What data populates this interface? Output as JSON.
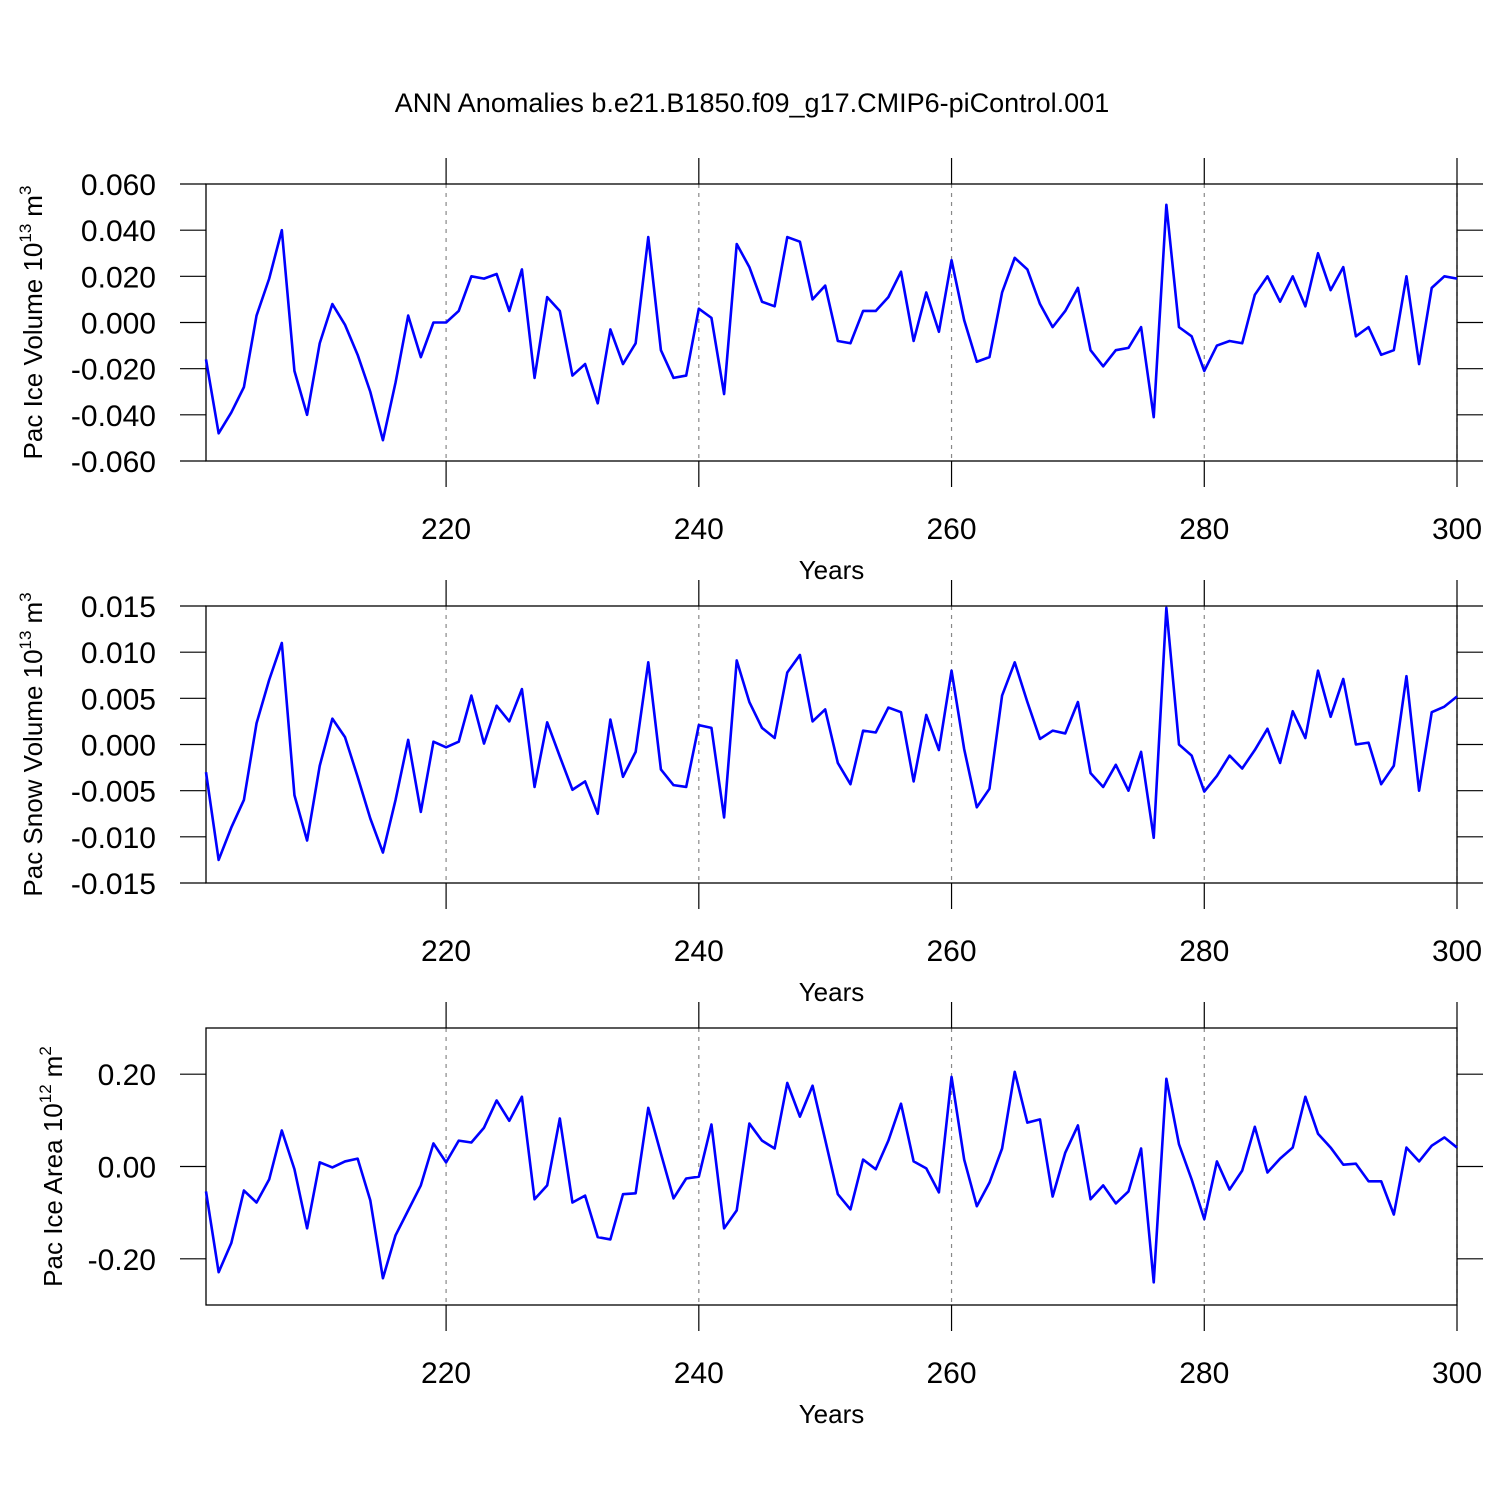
{
  "title": "ANN Anomalies b.e21.B1850.f09_g17.CMIP6-piControl.001",
  "chart_data": [
    {
      "type": "line",
      "ylabel": [
        "Pac Ice Volume 10",
        "13",
        "m",
        "3"
      ],
      "xlabel": "Years",
      "grid": true,
      "grid_axis": "x",
      "xlim": [
        201,
        300
      ],
      "xticks": [
        220,
        240,
        260,
        280,
        300
      ],
      "ylim": [
        -0.06,
        0.06
      ],
      "yticks": [
        {
          "value": -0.06,
          "label": "-0.060"
        },
        {
          "value": -0.04,
          "label": "-0.040"
        },
        {
          "value": -0.02,
          "label": "-0.020"
        },
        {
          "value": 0,
          "label": "0.000"
        },
        {
          "value": 0.02,
          "label": "0.020"
        },
        {
          "value": 0.04,
          "label": "0.040"
        },
        {
          "value": 0.06,
          "label": "0.060"
        }
      ],
      "x": [
        201,
        202,
        203,
        204,
        205,
        206,
        207,
        208,
        209,
        210,
        211,
        212,
        213,
        214,
        215,
        216,
        217,
        218,
        219,
        220,
        221,
        222,
        223,
        224,
        225,
        226,
        227,
        228,
        229,
        230,
        231,
        232,
        233,
        234,
        235,
        236,
        237,
        238,
        239,
        240,
        241,
        242,
        243,
        244,
        245,
        246,
        247,
        248,
        249,
        250,
        251,
        252,
        253,
        254,
        255,
        256,
        257,
        258,
        259,
        260,
        261,
        262,
        263,
        264,
        265,
        266,
        267,
        268,
        269,
        270,
        271,
        272,
        273,
        274,
        275,
        276,
        277,
        278,
        279,
        280,
        281,
        282,
        283,
        284,
        285,
        286,
        287,
        288,
        289,
        290,
        291,
        292,
        293,
        294,
        295,
        296,
        297,
        298,
        299,
        300
      ],
      "series": [
        {
          "color": "#0000ff",
          "values": [
            -0.016,
            -0.048,
            -0.039,
            -0.028,
            0.003,
            0.019,
            0.04,
            -0.021,
            -0.04,
            -0.009,
            0.008,
            -0.001,
            -0.014,
            -0.03,
            -0.051,
            -0.026,
            0.003,
            -0.015,
            0.0,
            0.0,
            0.005,
            0.02,
            0.019,
            0.021,
            0.005,
            0.023,
            -0.024,
            0.011,
            0.005,
            -0.023,
            -0.018,
            -0.035,
            -0.003,
            -0.018,
            -0.009,
            0.037,
            -0.012,
            -0.024,
            -0.023,
            0.006,
            0.002,
            -0.031,
            0.034,
            0.024,
            0.009,
            0.007,
            0.037,
            0.035,
            0.01,
            0.016,
            -0.008,
            -0.009,
            0.005,
            0.005,
            0.011,
            0.022,
            -0.008,
            0.013,
            -0.004,
            0.027,
            0.001,
            -0.017,
            -0.015,
            0.013,
            0.028,
            0.023,
            0.008,
            -0.002,
            0.005,
            0.015,
            -0.012,
            -0.019,
            -0.012,
            -0.011,
            -0.002,
            -0.041,
            0.051,
            -0.002,
            -0.006,
            -0.021,
            -0.01,
            -0.008,
            -0.009,
            0.012,
            0.02,
            0.009,
            0.02,
            0.007,
            0.03,
            0.014,
            0.024,
            -0.006,
            -0.002,
            -0.014,
            -0.012,
            0.02,
            -0.018,
            0.015,
            0.02,
            0.019
          ]
        }
      ]
    },
    {
      "type": "line",
      "ylabel": [
        "Pac Snow Volume 10",
        "13",
        "m",
        "3"
      ],
      "xlabel": "Years",
      "grid": true,
      "grid_axis": "x",
      "xlim": [
        201,
        300
      ],
      "xticks": [
        220,
        240,
        260,
        280,
        300
      ],
      "ylim": [
        -0.015,
        0.015
      ],
      "yticks": [
        {
          "value": -0.015,
          "label": "-0.015"
        },
        {
          "value": -0.01,
          "label": "-0.010"
        },
        {
          "value": -0.005,
          "label": "-0.005"
        },
        {
          "value": 0,
          "label": "0.000"
        },
        {
          "value": 0.005,
          "label": "0.005"
        },
        {
          "value": 0.01,
          "label": "0.010"
        },
        {
          "value": 0.015,
          "label": "0.015"
        }
      ],
      "x": [
        201,
        202,
        203,
        204,
        205,
        206,
        207,
        208,
        209,
        210,
        211,
        212,
        213,
        214,
        215,
        216,
        217,
        218,
        219,
        220,
        221,
        222,
        223,
        224,
        225,
        226,
        227,
        228,
        229,
        230,
        231,
        232,
        233,
        234,
        235,
        236,
        237,
        238,
        239,
        240,
        241,
        242,
        243,
        244,
        245,
        246,
        247,
        248,
        249,
        250,
        251,
        252,
        253,
        254,
        255,
        256,
        257,
        258,
        259,
        260,
        261,
        262,
        263,
        264,
        265,
        266,
        267,
        268,
        269,
        270,
        271,
        272,
        273,
        274,
        275,
        276,
        277,
        278,
        279,
        280,
        281,
        282,
        283,
        284,
        285,
        286,
        287,
        288,
        289,
        290,
        291,
        292,
        293,
        294,
        295,
        296,
        297,
        298,
        299,
        300
      ],
      "series": [
        {
          "color": "#0000ff",
          "values": [
            -0.003,
            -0.0125,
            -0.009,
            -0.006,
            0.0023,
            0.007,
            0.011,
            -0.0055,
            -0.0104,
            -0.0023,
            0.0028,
            0.0008,
            -0.0035,
            -0.008,
            -0.0117,
            -0.006,
            0.0005,
            -0.0073,
            0.0003,
            -0.0003,
            0.0003,
            0.0053,
            0.0001,
            0.0042,
            0.0025,
            0.006,
            -0.0046,
            0.0024,
            -0.0013,
            -0.0049,
            -0.004,
            -0.0075,
            0.0027,
            -0.0035,
            -0.0008,
            0.0089,
            -0.0027,
            -0.0044,
            -0.0046,
            0.0021,
            0.0018,
            -0.0079,
            0.0091,
            0.0046,
            0.0018,
            0.0007,
            0.0078,
            0.0097,
            0.0025,
            0.0038,
            -0.002,
            -0.0043,
            0.0015,
            0.0013,
            0.004,
            0.0035,
            -0.004,
            0.0032,
            -0.0006,
            0.008,
            -0.0005,
            -0.0068,
            -0.0048,
            0.0053,
            0.0089,
            0.0046,
            0.0006,
            0.0015,
            0.0012,
            0.0046,
            -0.0031,
            -0.0046,
            -0.0022,
            -0.005,
            -0.0008,
            -0.0101,
            0.0148,
            0.0,
            -0.0012,
            -0.0051,
            -0.0034,
            -0.0012,
            -0.0026,
            -0.0006,
            0.0017,
            -0.002,
            0.0036,
            0.0007,
            0.008,
            0.003,
            0.0071,
            0.0,
            0.0002,
            -0.0043,
            -0.0023,
            0.0074,
            -0.005,
            0.0035,
            0.0041,
            0.0052
          ]
        }
      ]
    },
    {
      "type": "line",
      "ylabel": [
        "Pac Ice Area 10",
        "12",
        "m",
        "2"
      ],
      "xlabel": "Years",
      "grid": true,
      "grid_axis": "x",
      "xlim": [
        201,
        300
      ],
      "xticks": [
        220,
        240,
        260,
        280,
        300
      ],
      "ylim": [
        -0.3,
        0.3
      ],
      "yticks": [
        {
          "value": -0.2,
          "label": "-0.20"
        },
        {
          "value": 0,
          "label": "0.00"
        },
        {
          "value": 0.2,
          "label": "0.20"
        }
      ],
      "x": [
        201,
        202,
        203,
        204,
        205,
        206,
        207,
        208,
        209,
        210,
        211,
        212,
        213,
        214,
        215,
        216,
        217,
        218,
        219,
        220,
        221,
        222,
        223,
        224,
        225,
        226,
        227,
        228,
        229,
        230,
        231,
        232,
        233,
        234,
        235,
        236,
        237,
        238,
        239,
        240,
        241,
        242,
        243,
        244,
        245,
        246,
        247,
        248,
        249,
        250,
        251,
        252,
        253,
        254,
        255,
        256,
        257,
        258,
        259,
        260,
        261,
        262,
        263,
        264,
        265,
        266,
        267,
        268,
        269,
        270,
        271,
        272,
        273,
        274,
        275,
        276,
        277,
        278,
        279,
        280,
        281,
        282,
        283,
        284,
        285,
        286,
        287,
        288,
        289,
        290,
        291,
        292,
        293,
        294,
        295,
        296,
        297,
        298,
        299,
        300
      ],
      "series": [
        {
          "color": "#0000ff",
          "values": [
            -0.054,
            -0.229,
            -0.166,
            -0.052,
            -0.078,
            -0.028,
            0.078,
            -0.006,
            -0.134,
            0.009,
            -0.002,
            0.011,
            0.017,
            -0.073,
            -0.242,
            -0.149,
            -0.095,
            -0.041,
            0.05,
            0.009,
            0.056,
            0.052,
            0.084,
            0.143,
            0.099,
            0.151,
            -0.071,
            -0.041,
            0.104,
            -0.078,
            -0.063,
            -0.153,
            -0.158,
            -0.06,
            -0.058,
            0.127,
            0.028,
            -0.069,
            -0.026,
            -0.022,
            0.091,
            -0.134,
            -0.095,
            0.093,
            0.056,
            0.039,
            0.181,
            0.108,
            0.175,
            0.058,
            -0.06,
            -0.093,
            0.015,
            -0.006,
            0.056,
            0.136,
            0.011,
            -0.004,
            -0.056,
            0.194,
            0.015,
            -0.086,
            -0.035,
            0.039,
            0.205,
            0.095,
            0.102,
            -0.065,
            0.03,
            0.089,
            -0.071,
            -0.041,
            -0.08,
            -0.054,
            0.039,
            -0.251,
            0.19,
            0.048,
            -0.028,
            -0.114,
            0.011,
            -0.05,
            -0.009,
            0.086,
            -0.013,
            0.017,
            0.041,
            0.151,
            0.071,
            0.041,
            0.004,
            0.006,
            -0.032,
            -0.032,
            -0.104,
            0.041,
            0.011,
            0.045,
            0.063,
            0.041
          ]
        }
      ]
    }
  ]
}
